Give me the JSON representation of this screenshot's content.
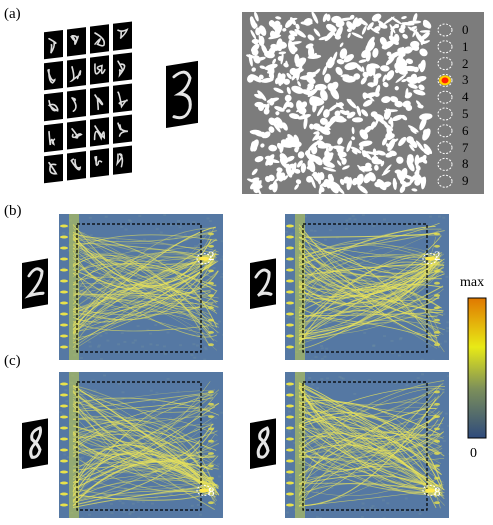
{
  "panels": {
    "a": "(a)",
    "b": "(b)",
    "c": "(c)"
  },
  "digit_classes": [
    "0",
    "1",
    "2",
    "3",
    "4",
    "5",
    "6",
    "7",
    "8",
    "9"
  ],
  "highlighted_class_a": "3",
  "tiles": {
    "b_left": "2",
    "b_right": "2",
    "c_left": "8",
    "c_right": "8"
  },
  "colorbar": {
    "max_label": "max",
    "min_label": "0",
    "colors": [
      "#2f4b7c",
      "#e8ea16",
      "#e07800"
    ]
  },
  "colors": {
    "mask_grey": "#7c7c7c",
    "field_bg": "#5578a3",
    "beam": "#e9e35a",
    "detector_hot": "#ff2200"
  }
}
